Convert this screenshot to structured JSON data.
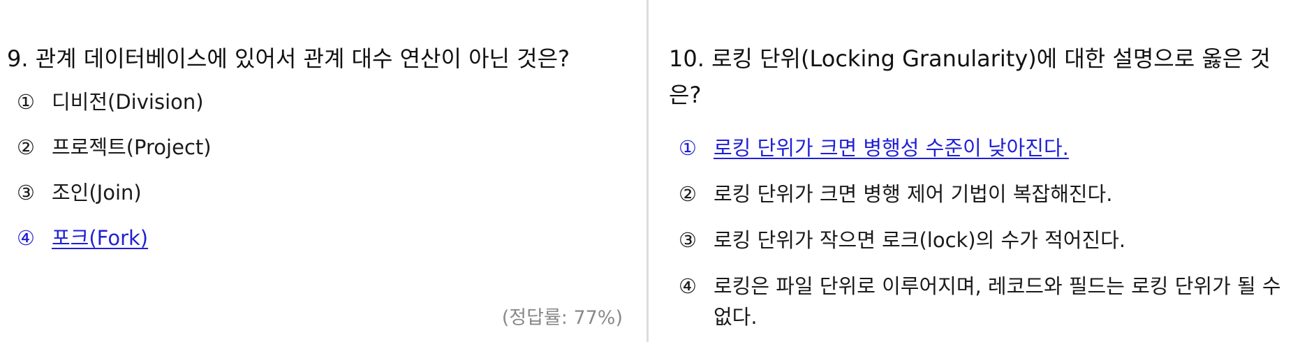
{
  "q9": {
    "title": "9. 관계 데이터베이스에 있어서 관계 대수 연산이 아닌 것은?",
    "options": [
      {
        "num": "①",
        "text": "디비전(Division)"
      },
      {
        "num": "②",
        "text": "프로젝트(Project)"
      },
      {
        "num": "③",
        "text": "조인(Join)"
      },
      {
        "num": "④",
        "text": "포크(Fork)"
      }
    ],
    "correct_index": 3,
    "accuracy": "(정답률: 77%)"
  },
  "q10": {
    "title": "10. 로킹 단위(Locking Granularity)에 대한 설명으로 옳은 것은?",
    "options": [
      {
        "num": "①",
        "text": "로킹 단위가 크면 병행성 수준이 낮아진다."
      },
      {
        "num": "②",
        "text": "로킹 단위가 크면 병행 제어 기법이 복잡해진다."
      },
      {
        "num": "③",
        "text": "로킹 단위가 작으면 로크(lock)의 수가 적어진다."
      },
      {
        "num": "④",
        "text": "로킹은 파일 단위로 이루어지며, 레코드와 필드는 로킹 단위가 될 수 없다."
      }
    ],
    "correct_index": 0
  },
  "colors": {
    "correct_answer": "#1f1fd6",
    "accuracy_text": "#8a8a8a",
    "divider": "#dcdcdc"
  }
}
